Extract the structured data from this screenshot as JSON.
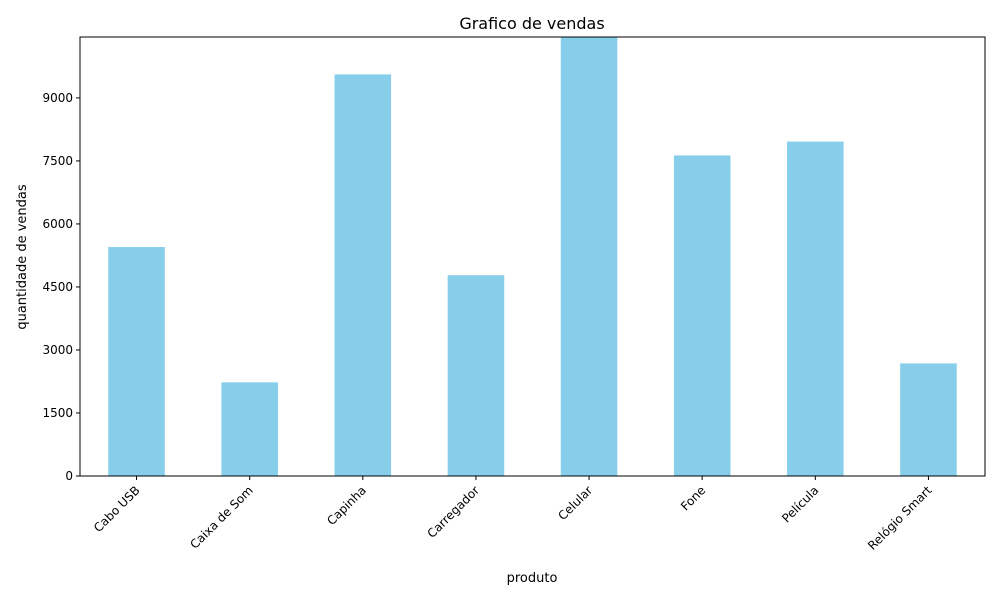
{
  "chart_data": {
    "type": "bar",
    "title": "Grafico de vendas",
    "xlabel": "produto",
    "ylabel": "quantidade de vendas",
    "categories": [
      "Cabo USB",
      "Caixa de Som",
      "Capinha",
      "Carregador",
      "Celular",
      "Fone",
      "Película",
      "Relógio Smart"
    ],
    "values": [
      5450,
      2230,
      9560,
      4780,
      10450,
      7630,
      7960,
      2680
    ],
    "ylim": [
      0,
      10450
    ],
    "yticks": [
      0,
      1500,
      3000,
      4500,
      6000,
      7500,
      9000
    ],
    "ytick_labels": [
      "0",
      "1500",
      "3000",
      "4500",
      "6000",
      "7500",
      "9000"
    ],
    "bar_color": "#87CEEB",
    "grid": false,
    "legend": false
  }
}
